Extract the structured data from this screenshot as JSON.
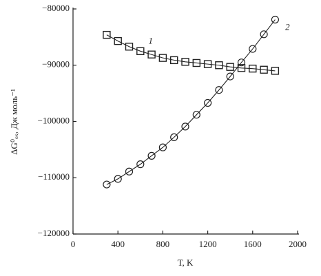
{
  "chart_data": {
    "type": "line",
    "xlabel": "T, K",
    "ylabel": "ΔG⁰ₒₓ, Дж моль⁻¹",
    "x": [
      300,
      400,
      500,
      600,
      700,
      800,
      900,
      1000,
      1100,
      1200,
      1300,
      1400,
      1500,
      1600,
      1700,
      1800
    ],
    "series": [
      {
        "name": "1",
        "color": "#222222",
        "marker": "square",
        "values": [
          -84600,
          -85700,
          -86700,
          -87500,
          -88100,
          -88700,
          -89100,
          -89400,
          -89600,
          -89800,
          -90000,
          -90300,
          -90500,
          -90600,
          -90800,
          -91000
        ]
      },
      {
        "name": "2",
        "color": "#222222",
        "marker": "circle",
        "values": [
          -111200,
          -110200,
          -108900,
          -107600,
          -106100,
          -104600,
          -102800,
          -100900,
          -98800,
          -96700,
          -94400,
          -92000,
          -89500,
          -87100,
          -84500,
          -81900
        ]
      }
    ],
    "xlim": [
      0,
      2000
    ],
    "xticks": [
      0,
      400,
      800,
      1200,
      1600,
      2000
    ],
    "ylim": [
      -120000,
      -80000
    ],
    "yticks": [
      {
        "value": -120000,
        "label": "−120000"
      },
      {
        "value": -110000,
        "label": "−110000"
      },
      {
        "value": -100000,
        "label": "−100000"
      },
      {
        "value": -90000,
        "label": "−90000"
      },
      {
        "value": -80000,
        "label": "−80000"
      }
    ],
    "grid": false
  }
}
